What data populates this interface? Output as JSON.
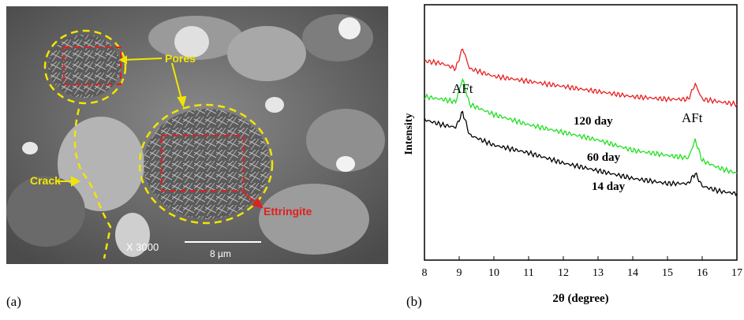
{
  "panel_a": {
    "label": "(a)",
    "annotations": {
      "pores": "Pores",
      "crack": "Crack",
      "ettringite": "Ettringite"
    },
    "magnification": "X 3000",
    "scale_bar": "8 µm",
    "colors": {
      "circle": "#f2e600",
      "box": "#e02020",
      "arrow": "#f2e600",
      "ettringite_text": "#e02020"
    }
  },
  "panel_b": {
    "label": "(b)",
    "peak_labels": [
      "AFt",
      "AFt"
    ],
    "series_labels": [
      "120 day",
      "60 day",
      "14 day"
    ]
  },
  "chart_data": {
    "type": "line",
    "title": "",
    "xlabel": "2θ (degree)",
    "ylabel": "Intensity",
    "xlim": [
      8,
      17
    ],
    "xticks": [
      8,
      9,
      10,
      11,
      12,
      13,
      14,
      15,
      16,
      17
    ],
    "y_ticks_shown": false,
    "series": [
      {
        "name": "120 day",
        "color": "#e82020",
        "x": [
          8,
          8.5,
          8.9,
          9.1,
          9.3,
          10,
          11,
          12,
          13,
          14,
          15,
          15.6,
          15.8,
          16.0,
          16.5,
          17
        ],
        "y": [
          0.78,
          0.77,
          0.75,
          0.83,
          0.75,
          0.72,
          0.7,
          0.68,
          0.66,
          0.64,
          0.63,
          0.63,
          0.69,
          0.63,
          0.62,
          0.61
        ]
      },
      {
        "name": "60 day",
        "color": "#20e020",
        "x": [
          8,
          8.5,
          8.9,
          9.1,
          9.3,
          10,
          11,
          12,
          13,
          14,
          15,
          15.6,
          15.8,
          16.0,
          16.5,
          17
        ],
        "y": [
          0.64,
          0.63,
          0.62,
          0.71,
          0.61,
          0.57,
          0.53,
          0.5,
          0.47,
          0.43,
          0.41,
          0.4,
          0.47,
          0.39,
          0.36,
          0.34
        ]
      },
      {
        "name": "14 day",
        "color": "#000000",
        "x": [
          8,
          8.5,
          8.9,
          9.1,
          9.3,
          10,
          11,
          12,
          13,
          14,
          15,
          15.6,
          15.8,
          16.0,
          16.5,
          17
        ],
        "y": [
          0.55,
          0.53,
          0.52,
          0.58,
          0.49,
          0.45,
          0.42,
          0.38,
          0.35,
          0.32,
          0.3,
          0.3,
          0.34,
          0.29,
          0.27,
          0.26
        ]
      }
    ],
    "annotations": [
      "AFt",
      "AFt"
    ]
  }
}
